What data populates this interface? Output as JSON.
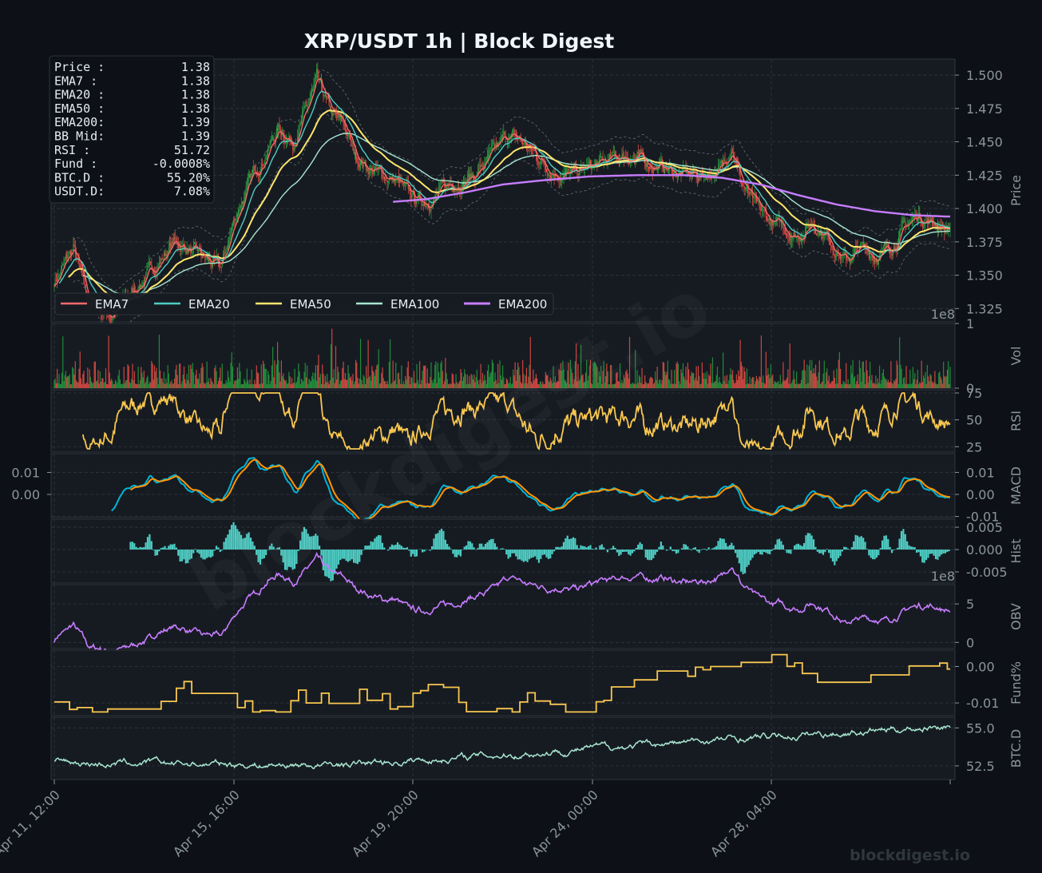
{
  "chart_data": {
    "type": "line",
    "title": "XRP/USDT  1h  |  Block Digest",
    "watermark": "blockdigest.io",
    "footer_brand": "blockdigest.io",
    "x_ticks": [
      "Apr 11, 12:00",
      "Apr 15, 16:00",
      "Apr 19, 20:00",
      "Apr 24, 00:00",
      "Apr 28, 04:00"
    ],
    "grid": true,
    "colors": {
      "bg": "#0d1117",
      "panel": "#161b22",
      "grid": "#30363d",
      "text": "#8b949e",
      "up": "#26a641",
      "down": "#f85149",
      "ema7": "#ff6b6b",
      "ema20": "#4ecdc4",
      "ema50": "#ffe66d",
      "ema100": "#a8e6cf",
      "ema200": "#c77dff",
      "rsi": "#f9c74f",
      "macd": "#00b4d8",
      "signal": "#ff9500",
      "hist": "#4ecdc4",
      "obv": "#c77dff",
      "funding": "#f9c74f",
      "btcd": "#a8e6cf"
    },
    "info_box": [
      {
        "label": "Price :",
        "value": "1.38"
      },
      {
        "label": "EMA7  :",
        "value": "1.38"
      },
      {
        "label": "EMA20 :",
        "value": "1.38"
      },
      {
        "label": "EMA50 :",
        "value": "1.38"
      },
      {
        "label": "EMA200:",
        "value": "1.39"
      },
      {
        "label": "BB Mid:",
        "value": "1.39"
      },
      {
        "label": "RSI   :",
        "value": "51.72"
      },
      {
        "label": "Fund  :",
        "value": "-0.0008%"
      },
      {
        "label": "BTC.D :",
        "value": "55.20%"
      },
      {
        "label": "USDT.D:",
        "value": "7.08%"
      }
    ],
    "legend": {
      "placement": "lower-left",
      "items": [
        {
          "name": "EMA7",
          "key": "ema7"
        },
        {
          "name": "EMA20",
          "key": "ema20"
        },
        {
          "name": "EMA50",
          "key": "ema50"
        },
        {
          "name": "EMA100",
          "key": "ema100"
        },
        {
          "name": "EMA200",
          "key": "ema200"
        }
      ]
    },
    "panels": [
      {
        "key": "price",
        "ylabel": "Price",
        "ylim": [
          1.315,
          1.512
        ],
        "ticks": [
          "1.325",
          "1.350",
          "1.375",
          "1.400",
          "1.425",
          "1.450",
          "1.475",
          "1.500"
        ],
        "tick_values": [
          1.325,
          1.35,
          1.375,
          1.4,
          1.425,
          1.45,
          1.475,
          1.5
        ],
        "price_path": [
          [
            0,
            1.345
          ],
          [
            20,
            1.37
          ],
          [
            35,
            1.33
          ],
          [
            60,
            1.32
          ],
          [
            85,
            1.34
          ],
          [
            110,
            1.36
          ],
          [
            125,
            1.375
          ],
          [
            140,
            1.37
          ],
          [
            160,
            1.36
          ],
          [
            175,
            1.355
          ],
          [
            190,
            1.395
          ],
          [
            205,
            1.42
          ],
          [
            220,
            1.44
          ],
          [
            235,
            1.46
          ],
          [
            250,
            1.45
          ],
          [
            265,
            1.475
          ],
          [
            275,
            1.495
          ],
          [
            290,
            1.47
          ],
          [
            305,
            1.46
          ],
          [
            315,
            1.44
          ],
          [
            330,
            1.43
          ],
          [
            345,
            1.425
          ],
          [
            360,
            1.42
          ],
          [
            370,
            1.41
          ],
          [
            385,
            1.405
          ],
          [
            400,
            1.41
          ],
          [
            420,
            1.42
          ],
          [
            440,
            1.425
          ],
          [
            460,
            1.44
          ],
          [
            475,
            1.455
          ],
          [
            490,
            1.45
          ],
          [
            505,
            1.44
          ],
          [
            520,
            1.43
          ],
          [
            540,
            1.425
          ],
          [
            560,
            1.43
          ],
          [
            580,
            1.435
          ],
          [
            600,
            1.44
          ],
          [
            620,
            1.435
          ],
          [
            640,
            1.43
          ],
          [
            660,
            1.425
          ],
          [
            680,
            1.425
          ],
          [
            700,
            1.43
          ],
          [
            710,
            1.45
          ],
          [
            720,
            1.42
          ],
          [
            735,
            1.4
          ],
          [
            750,
            1.39
          ],
          [
            765,
            1.385
          ],
          [
            780,
            1.38
          ],
          [
            795,
            1.39
          ],
          [
            810,
            1.38
          ],
          [
            820,
            1.37
          ],
          [
            830,
            1.36
          ],
          [
            845,
            1.37
          ],
          [
            860,
            1.365
          ],
          [
            875,
            1.37
          ],
          [
            890,
            1.385
          ],
          [
            905,
            1.395
          ],
          [
            920,
            1.39
          ],
          [
            935,
            1.385
          ]
        ],
        "ema_shift": {
          "ema7": 3,
          "ema20": 10,
          "ema50": 22,
          "ema100": 38
        },
        "ema200_path": [
          [
            355,
            1.405
          ],
          [
            390,
            1.407
          ],
          [
            430,
            1.412
          ],
          [
            470,
            1.418
          ],
          [
            510,
            1.421
          ],
          [
            560,
            1.424
          ],
          [
            610,
            1.425
          ],
          [
            660,
            1.425
          ],
          [
            700,
            1.423
          ],
          [
            740,
            1.418
          ],
          [
            780,
            1.41
          ],
          [
            820,
            1.403
          ],
          [
            860,
            1.398
          ],
          [
            900,
            1.395
          ],
          [
            935,
            1.394
          ]
        ],
        "bb_width": 0.016
      },
      {
        "key": "vol",
        "ylabel": "Vol",
        "ylim": [
          0,
          1
        ],
        "ticks": [
          "0",
          "1"
        ],
        "tick_values": [
          0,
          1
        ],
        "exponent": "1e8"
      },
      {
        "key": "rsi",
        "ylabel": "RSI",
        "ylim": [
          20,
          78
        ],
        "ticks": [
          "25",
          "50",
          "75"
        ],
        "tick_values": [
          25,
          50,
          75
        ]
      },
      {
        "key": "macd",
        "ylabel": "MACD",
        "ylim": [
          -0.0105,
          0.0185
        ],
        "ticks": [
          "0.01",
          "0.00",
          "-0.01"
        ],
        "tick_values": [
          0.01,
          0.0,
          -0.01
        ],
        "left_ticks": [
          "0.01",
          "0.00"
        ],
        "left_tick_values": [
          0.01,
          0.0
        ]
      },
      {
        "key": "hist",
        "ylabel": "Hist",
        "ylim": [
          -0.0075,
          0.0068
        ],
        "ticks": [
          "0.005",
          "0.000",
          "-0.005"
        ],
        "tick_values": [
          0.005,
          0.0,
          -0.005
        ],
        "exponent": "1e8"
      },
      {
        "key": "obv",
        "ylabel": "OBV",
        "ylim": [
          -0.8,
          7.5
        ],
        "ticks": [
          "5",
          "0"
        ],
        "tick_values": [
          5,
          0
        ]
      },
      {
        "key": "fund",
        "ylabel": "Fund%",
        "ylim": [
          -0.0135,
          0.0045
        ],
        "ticks": [
          "0.00",
          "-0.01"
        ],
        "tick_values": [
          0.0,
          -0.01
        ]
      },
      {
        "key": "btcd",
        "ylabel": "BTC.D",
        "ylim": [
          51.6,
          55.7
        ],
        "ticks": [
          "55.0",
          "52.5"
        ],
        "tick_values": [
          55.0,
          52.5
        ]
      }
    ]
  }
}
